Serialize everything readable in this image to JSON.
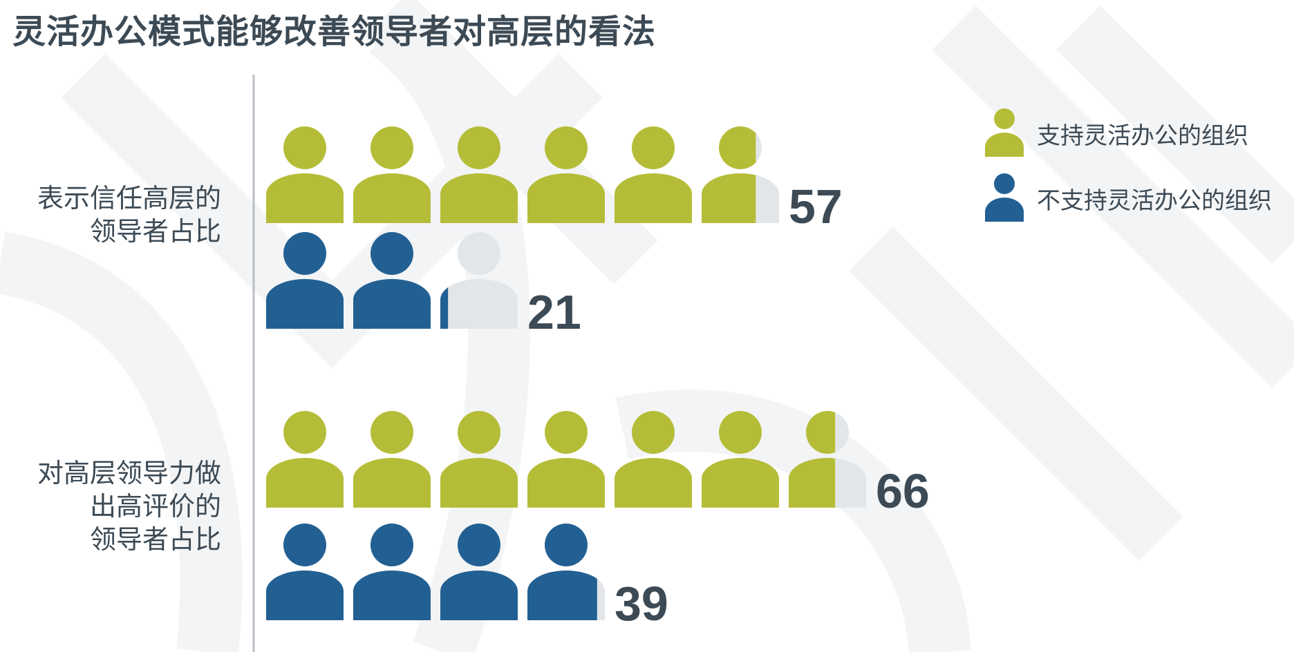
{
  "title": "灵活办公模式能够改善领导者对高层的看法",
  "chart_data": {
    "type": "bar",
    "subtype": "pictograph",
    "categories": [
      [
        "表示信任高层的",
        "领导者占比"
      ],
      [
        "对高层领导力做",
        "出高评价的",
        "领导者占比"
      ]
    ],
    "series": [
      {
        "name": "支持灵活办公的组织",
        "values": [
          57,
          66
        ]
      },
      {
        "name": "不支持灵活办公的组织",
        "values": [
          21,
          39
        ]
      }
    ],
    "units_per_icon": 10,
    "legend_position": "top-right",
    "colors": {
      "series0": "#b5bd38",
      "series1": "#226093",
      "empty": "#e3e6e9",
      "text": "#3c4a55",
      "axis": "#b8bec3"
    }
  }
}
